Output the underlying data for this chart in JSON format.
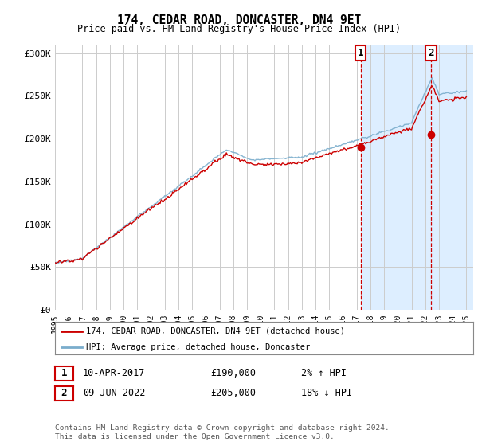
{
  "title": "174, CEDAR ROAD, DONCASTER, DN4 9ET",
  "subtitle": "Price paid vs. HM Land Registry's House Price Index (HPI)",
  "ylim": [
    0,
    310000
  ],
  "yticks": [
    0,
    50000,
    100000,
    150000,
    200000,
    250000,
    300000
  ],
  "ytick_labels": [
    "£0",
    "£50K",
    "£100K",
    "£150K",
    "£200K",
    "£250K",
    "£300K"
  ],
  "marker1_x": 2017.28,
  "marker1_y": 190000,
  "marker2_x": 2022.44,
  "marker2_y": 205000,
  "highlight_start": 2017.28,
  "highlight_end": 2024.5,
  "xmin": 1995,
  "xmax": 2025.5,
  "legend_line1": "174, CEDAR ROAD, DONCASTER, DN4 9ET (detached house)",
  "legend_line2": "HPI: Average price, detached house, Doncaster",
  "ann1_date": "10-APR-2017",
  "ann1_price": "£190,000",
  "ann1_hpi": "2% ↑ HPI",
  "ann2_date": "09-JUN-2022",
  "ann2_price": "£205,000",
  "ann2_hpi": "18% ↓ HPI",
  "footnote": "Contains HM Land Registry data © Crown copyright and database right 2024.\nThis data is licensed under the Open Government Licence v3.0.",
  "color_red": "#cc0000",
  "color_blue": "#7aadcc",
  "color_dashed": "#cc0000",
  "bg_white": "#ffffff",
  "bg_highlight": "#ddeeff",
  "grid_color": "#cccccc"
}
